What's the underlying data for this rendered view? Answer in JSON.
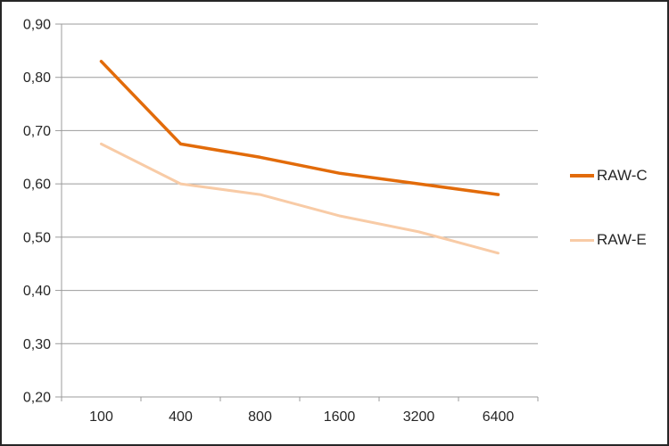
{
  "chart_data": {
    "type": "line",
    "title": "",
    "xlabel": "",
    "ylabel": "",
    "categories": [
      "100",
      "400",
      "800",
      "1600",
      "3200",
      "6400"
    ],
    "series": [
      {
        "name": "RAW-C",
        "color": "#E26B0A",
        "stroke_width": 3.5,
        "values": [
          0.83,
          0.675,
          0.65,
          0.62,
          0.6,
          0.58
        ]
      },
      {
        "name": "RAW-E",
        "color": "#F8CBA6",
        "stroke_width": 3,
        "values": [
          0.675,
          0.6,
          0.58,
          0.54,
          0.51,
          0.47
        ]
      }
    ],
    "ylim": [
      0.2,
      0.9
    ],
    "y_tick_step": 0.1,
    "y_tick_labels": [
      "0,20",
      "0,30",
      "0,40",
      "0,50",
      "0,60",
      "0,70",
      "0,80",
      "0,90"
    ],
    "grid": true,
    "legend_position": "right",
    "colors": {
      "axis": "#9B9B9B",
      "text": "#262626",
      "background": "#FFFFFF"
    }
  }
}
